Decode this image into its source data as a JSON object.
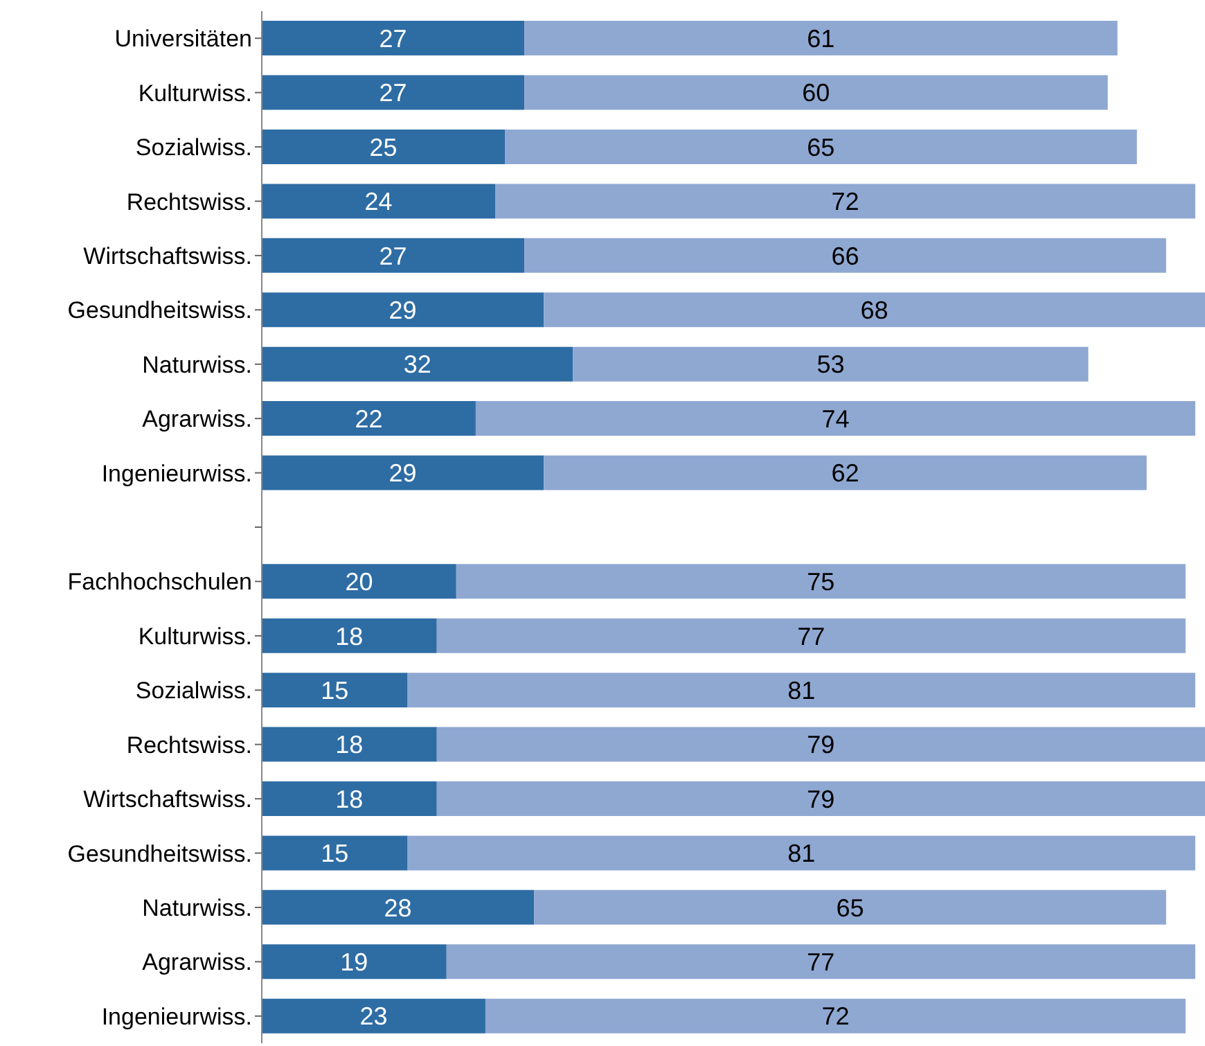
{
  "chart_data": {
    "type": "bar",
    "orientation": "horizontal",
    "stacked": true,
    "data_labels": true,
    "tick_labels": "y",
    "categories": [
      "Universitäten",
      "Kulturwiss.",
      "Sozialwiss.",
      "Rechtswiss.",
      "Wirtschaftswiss.",
      "Gesundheitswiss.",
      "Naturwiss.",
      "Agrarwiss.",
      "Ingenieurwiss.",
      null,
      "Fachhochschulen",
      "Kulturwiss.",
      "Sozialwiss.",
      "Rechtswiss.",
      "Wirtschaftswiss.",
      "Gesundheitswiss.",
      "Naturwiss.",
      "Agrarwiss.",
      "Ingenieurwiss."
    ],
    "series": [
      {
        "color": "#2e6ca4",
        "values": [
          27,
          27,
          25,
          24,
          27,
          29,
          32,
          22,
          29,
          null,
          20,
          18,
          15,
          18,
          18,
          15,
          28,
          19,
          23
        ]
      },
      {
        "color": "#8fa8d2",
        "values": [
          61,
          60,
          65,
          72,
          66,
          68,
          53,
          74,
          62,
          null,
          75,
          77,
          81,
          79,
          79,
          81,
          65,
          77,
          72
        ]
      }
    ]
  }
}
